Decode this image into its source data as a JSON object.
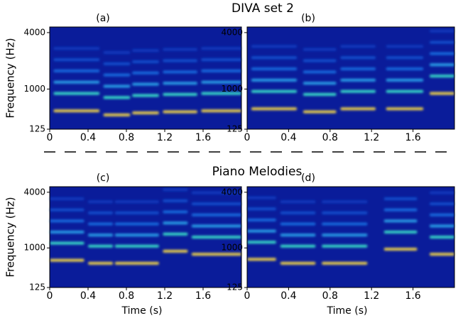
{
  "figure": {
    "titles": [
      "DIVA set 2",
      "Piano Melodies"
    ]
  },
  "chart_data": [
    {
      "type": "spectrogram",
      "title": "(a)",
      "ylabel": "Frequency (Hz)",
      "xlim": [
        0,
        2
      ],
      "xticks": [
        0,
        0.4,
        0.8,
        1.2,
        1.6
      ],
      "yscale": "mel",
      "ylim": [
        125,
        4500
      ],
      "yticks": [
        125,
        1000,
        4000
      ]
    },
    {
      "type": "spectrogram",
      "title": "(b)",
      "xlim": [
        0,
        2
      ],
      "xticks": [
        0,
        0.4,
        0.8,
        1.2,
        1.6
      ],
      "yscale": "mel",
      "ylim": [
        125,
        4500
      ],
      "yticks": [
        125,
        1000,
        4000
      ]
    },
    {
      "type": "spectrogram",
      "title": "(c)",
      "ylabel": "Frequency (Hz)",
      "xlabel": "Time (s)",
      "xlim": [
        0,
        2
      ],
      "xticks": [
        0,
        0.4,
        0.8,
        1.2,
        1.6
      ],
      "yscale": "mel",
      "ylim": [
        125,
        4500
      ],
      "yticks": [
        125,
        1000,
        4000
      ]
    },
    {
      "type": "spectrogram",
      "title": "(d)",
      "xlabel": "Time (s)",
      "xlim": [
        0,
        2
      ],
      "xticks": [
        0,
        0.4,
        0.8,
        1.2,
        1.6
      ],
      "yscale": "mel",
      "ylim": [
        125,
        4500
      ],
      "yticks": [
        125,
        1000,
        4000
      ]
    }
  ]
}
